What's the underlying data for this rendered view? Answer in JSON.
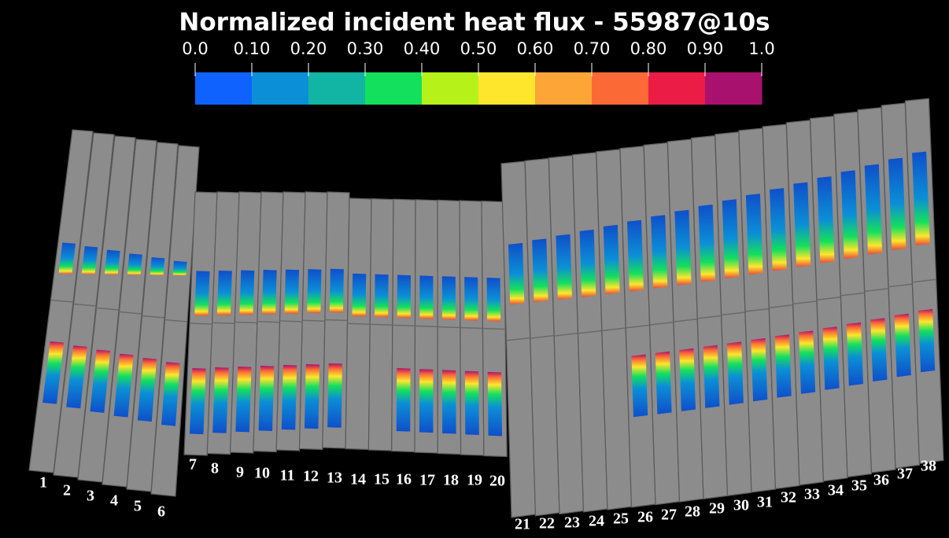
{
  "title": "Normalized incident heat flux - 55987@10s",
  "colorbar": {
    "labels": [
      "0.0",
      "0.10",
      "0.20",
      "0.30",
      "0.40",
      "0.50",
      "0.60",
      "0.70",
      "0.80",
      "0.90",
      "1.0"
    ],
    "colors": [
      "#0f62fe",
      "#0b8fd6",
      "#12b5a4",
      "#13e05c",
      "#b6f11a",
      "#fde62c",
      "#fda537",
      "#fb6a36",
      "#eb1c46",
      "#a9116e"
    ]
  },
  "tiles": [
    "1",
    "2",
    "3",
    "4",
    "5",
    "6",
    "7",
    "8",
    "9",
    "10",
    "11",
    "12",
    "13",
    "14",
    "15",
    "16",
    "17",
    "18",
    "19",
    "20",
    "21",
    "22",
    "23",
    "24",
    "25",
    "26",
    "27",
    "28",
    "29",
    "30",
    "31",
    "32",
    "33",
    "34",
    "35",
    "36",
    "37",
    "38"
  ]
}
